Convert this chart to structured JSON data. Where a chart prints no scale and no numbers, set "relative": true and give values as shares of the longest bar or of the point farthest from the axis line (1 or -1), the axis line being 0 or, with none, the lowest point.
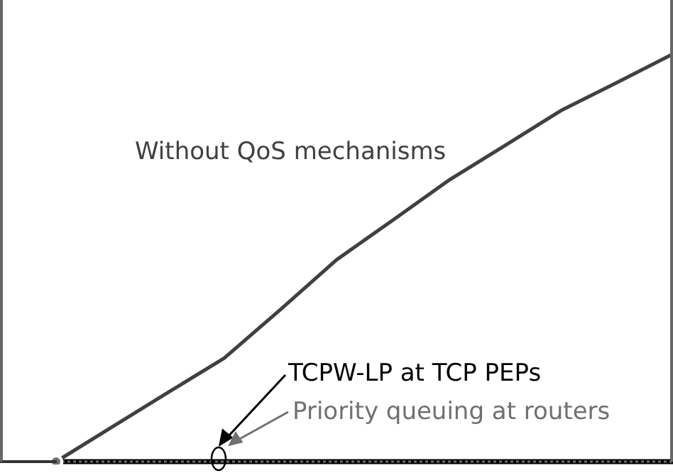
{
  "chart_data": {
    "type": "line",
    "relative": true,
    "categories": [
      null,
      null,
      null,
      null,
      null,
      null,
      null,
      null,
      null,
      null,
      null,
      null
    ],
    "marker": "none",
    "series": [
      {
        "name": "Without QoS mechanisms",
        "color": "#404040",
        "values": [
          0,
          0.085,
          0.17,
          0.254,
          0.373,
          0.495,
          0.592,
          0.69,
          0.775,
          0.861,
          0.93,
          1
        ]
      },
      {
        "name": "TCPW-LP at TCP PEPs",
        "color": "#000000",
        "line_style": "solid",
        "values": [
          0,
          0,
          0,
          0,
          0,
          0,
          0,
          0,
          0,
          0,
          0,
          0
        ]
      },
      {
        "name": "Priority queuing at routers",
        "color": "#707070",
        "line_style": "dotted",
        "values": [
          0,
          0,
          0,
          0,
          0,
          0,
          0,
          0,
          0,
          0,
          0,
          0
        ]
      }
    ]
  }
}
